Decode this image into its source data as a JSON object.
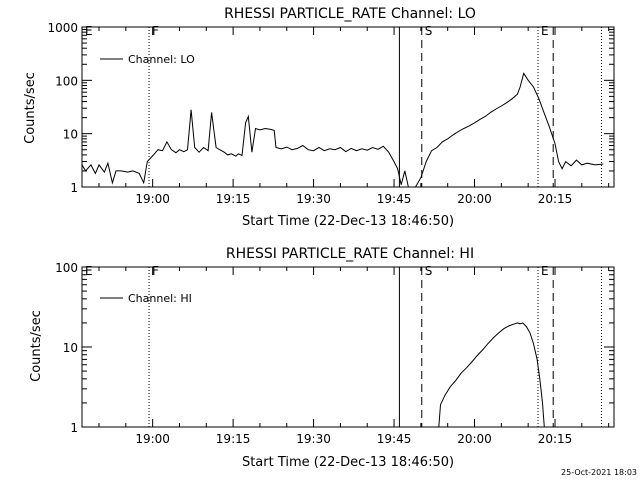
{
  "timestamp": "25-Oct-2021 18:03",
  "chart_data": [
    {
      "type": "line",
      "title": "RHESSI PARTICLE_RATE Channel: LO",
      "xlabel": "Start Time (22-Dec-13 18:46:50)",
      "ylabel": "Counts/sec",
      "yscale": "log",
      "ylim": [
        1,
        1000
      ],
      "xlim": [
        "18:46:50",
        "20:26:00"
      ],
      "x_ticks": [
        "19:00",
        "19:15",
        "19:30",
        "19:45",
        "20:00",
        "20:15"
      ],
      "y_ticks": [
        "1",
        "10",
        "100",
        "1000"
      ],
      "legend": "top-left",
      "series": [
        {
          "name": "Channel: LO",
          "points": [
            [
              "18:46:50",
              2.6
            ],
            [
              "18:47:30",
              2.0
            ],
            [
              "18:48:30",
              2.6
            ],
            [
              "18:49:20",
              1.8
            ],
            [
              "18:50:00",
              2.6
            ],
            [
              "18:51:00",
              1.9
            ],
            [
              "18:51:40",
              2.8
            ],
            [
              "18:52:30",
              1.2
            ],
            [
              "18:53:10",
              2.0
            ],
            [
              "18:54:10",
              2.0
            ],
            [
              "18:55:20",
              1.9
            ],
            [
              "18:56:20",
              2.0
            ],
            [
              "18:57:30",
              1.8
            ],
            [
              "18:58:20",
              1.2
            ],
            [
              "18:59:00",
              3.0
            ],
            [
              "19:00:10",
              4.0
            ],
            [
              "19:01:00",
              5.0
            ],
            [
              "19:01:50",
              4.8
            ],
            [
              "19:02:40",
              7.0
            ],
            [
              "19:03:30",
              5.0
            ],
            [
              "19:04:20",
              4.4
            ],
            [
              "19:05:00",
              5.0
            ],
            [
              "19:05:50",
              4.6
            ],
            [
              "19:06:30",
              5.0
            ],
            [
              "19:07:10",
              28.0
            ],
            [
              "19:07:50",
              5.5
            ],
            [
              "19:08:40",
              4.5
            ],
            [
              "19:09:30",
              5.5
            ],
            [
              "19:10:20",
              4.8
            ],
            [
              "19:11:00",
              25.0
            ],
            [
              "19:11:50",
              5.5
            ],
            [
              "19:12:30",
              5.0
            ],
            [
              "19:13:20",
              4.5
            ],
            [
              "19:14:00",
              4.0
            ],
            [
              "19:14:40",
              4.2
            ],
            [
              "19:15:30",
              3.8
            ],
            [
              "19:16:00",
              4.2
            ],
            [
              "19:16:40",
              3.9
            ],
            [
              "19:17:20",
              16.0
            ],
            [
              "19:17:50",
              21.0
            ],
            [
              "19:18:30",
              4.5
            ],
            [
              "19:19:10",
              12.5
            ],
            [
              "19:20:00",
              11.8
            ],
            [
              "19:21:00",
              12.5
            ],
            [
              "19:22:00",
              12.0
            ],
            [
              "19:22:40",
              11.5
            ],
            [
              "19:23:00",
              5.5
            ],
            [
              "19:24:00",
              5.2
            ],
            [
              "19:25:00",
              5.6
            ],
            [
              "19:26:00",
              5.0
            ],
            [
              "19:27:00",
              5.3
            ],
            [
              "19:28:00",
              6.0
            ],
            [
              "19:29:00",
              5.0
            ],
            [
              "19:30:00",
              4.8
            ],
            [
              "19:31:00",
              5.5
            ],
            [
              "19:32:00",
              4.8
            ],
            [
              "19:33:00",
              5.2
            ],
            [
              "19:34:00",
              5.0
            ],
            [
              "19:35:00",
              5.5
            ],
            [
              "19:36:00",
              4.6
            ],
            [
              "19:37:00",
              5.3
            ],
            [
              "19:38:00",
              4.8
            ],
            [
              "19:39:00",
              5.2
            ],
            [
              "19:40:00",
              4.9
            ],
            [
              "19:41:00",
              5.5
            ],
            [
              "19:42:00",
              5.1
            ],
            [
              "19:43:00",
              5.8
            ],
            [
              "19:44:00",
              4.5
            ],
            [
              "19:45:00",
              3.0
            ],
            [
              "19:45:40",
              2.2
            ],
            [
              "19:46:20",
              1.1
            ],
            [
              "19:47:00",
              2.0
            ],
            [
              "19:47:40",
              1.0
            ],
            [
              "19:49:00",
              1.0
            ],
            [
              "19:50:00",
              1.5
            ],
            [
              "19:51:00",
              3.0
            ],
            [
              "19:52:00",
              4.8
            ],
            [
              "19:53:00",
              5.5
            ],
            [
              "19:54:00",
              7.0
            ],
            [
              "19:55:00",
              8.0
            ],
            [
              "19:56:00",
              9.5
            ],
            [
              "19:57:00",
              11.0
            ],
            [
              "19:58:00",
              12.5
            ],
            [
              "19:59:00",
              14.0
            ],
            [
              "20:00:00",
              16.0
            ],
            [
              "20:01:00",
              18.5
            ],
            [
              "20:02:00",
              21.0
            ],
            [
              "20:03:00",
              25.0
            ],
            [
              "20:04:00",
              29.0
            ],
            [
              "20:05:00",
              33.0
            ],
            [
              "20:06:00",
              38.0
            ],
            [
              "20:07:00",
              45.0
            ],
            [
              "20:08:00",
              55.0
            ],
            [
              "20:08:30",
              75.0
            ],
            [
              "20:09:10",
              135.0
            ],
            [
              "20:10:00",
              100.0
            ],
            [
              "20:11:00",
              75.0
            ],
            [
              "20:12:00",
              45.0
            ],
            [
              "20:13:00",
              24.0
            ],
            [
              "20:14:00",
              13.0
            ],
            [
              "20:15:00",
              6.5
            ],
            [
              "20:15:40",
              3.0
            ],
            [
              "20:16:20",
              2.2
            ],
            [
              "20:17:00",
              3.0
            ],
            [
              "20:18:00",
              2.5
            ],
            [
              "20:19:00",
              3.2
            ],
            [
              "20:20:00",
              2.6
            ],
            [
              "20:21:00",
              2.8
            ],
            [
              "20:22:30",
              2.6
            ],
            [
              "20:24:00",
              2.7
            ]
          ]
        }
      ],
      "vlines": [
        {
          "time": "18:46:50",
          "style": "dotted",
          "label": "E"
        },
        {
          "time": "18:59:20",
          "style": "dotted",
          "label": "F"
        },
        {
          "time": "19:46:00",
          "style": "solid",
          "label": ""
        },
        {
          "time": "19:50:10",
          "style": "dashed",
          "label": "S"
        },
        {
          "time": "20:11:50",
          "style": "dotted",
          "label": "E"
        },
        {
          "time": "20:14:40",
          "style": "dashed",
          "label": ""
        },
        {
          "time": "20:23:40",
          "style": "dotted",
          "label": ""
        }
      ]
    },
    {
      "type": "line",
      "title": "RHESSI PARTICLE_RATE Channel: HI",
      "xlabel": "Start Time (22-Dec-13 18:46:50)",
      "ylabel": "Counts/sec",
      "yscale": "log",
      "ylim": [
        1,
        100
      ],
      "xlim": [
        "18:46:50",
        "20:26:00"
      ],
      "x_ticks": [
        "19:00",
        "19:15",
        "19:30",
        "19:45",
        "20:00",
        "20:15"
      ],
      "y_ticks": [
        "1",
        "10",
        "100"
      ],
      "legend": "top-left",
      "series": [
        {
          "name": "Channel: HI",
          "points": [
            [
              "19:53:20",
              1.0
            ],
            [
              "19:53:40",
              1.9
            ],
            [
              "19:54:30",
              2.5
            ],
            [
              "19:55:30",
              3.2
            ],
            [
              "19:56:30",
              3.8
            ],
            [
              "19:57:30",
              4.7
            ],
            [
              "19:58:30",
              5.5
            ],
            [
              "19:59:30",
              6.5
            ],
            [
              "20:00:30",
              7.8
            ],
            [
              "20:01:30",
              9.2
            ],
            [
              "20:02:30",
              11.0
            ],
            [
              "20:03:30",
              13.0
            ],
            [
              "20:04:30",
              15.0
            ],
            [
              "20:05:30",
              17.0
            ],
            [
              "20:06:30",
              18.5
            ],
            [
              "20:07:30",
              19.5
            ],
            [
              "20:08:00",
              20.0
            ],
            [
              "20:08:30",
              19.5
            ],
            [
              "20:09:00",
              20.0
            ],
            [
              "20:09:40",
              18.0
            ],
            [
              "20:10:20",
              15.0
            ],
            [
              "20:11:00",
              11.0
            ],
            [
              "20:11:40",
              7.0
            ],
            [
              "20:12:10",
              4.0
            ],
            [
              "20:12:40",
              2.0
            ],
            [
              "20:13:00",
              1.0
            ]
          ]
        }
      ],
      "vlines": [
        {
          "time": "18:46:50",
          "style": "dotted",
          "label": "E"
        },
        {
          "time": "18:59:20",
          "style": "dotted",
          "label": "F"
        },
        {
          "time": "19:46:00",
          "style": "solid",
          "label": ""
        },
        {
          "time": "19:50:10",
          "style": "dashed",
          "label": "S"
        },
        {
          "time": "20:11:50",
          "style": "dotted",
          "label": "E"
        },
        {
          "time": "20:14:40",
          "style": "dashed",
          "label": ""
        },
        {
          "time": "20:23:40",
          "style": "dotted",
          "label": ""
        }
      ]
    }
  ]
}
